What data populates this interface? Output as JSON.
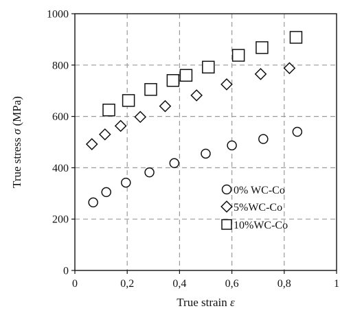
{
  "chart_data": {
    "type": "scatter",
    "title": "",
    "xlabel": "True strain",
    "xlabel_symbol": "ε",
    "ylabel": "True stress",
    "ylabel_symbol": "σ",
    "ylabel_unit": "(MPa)",
    "xlim": [
      0,
      1
    ],
    "ylim": [
      0,
      1000
    ],
    "x_ticks": [
      0,
      0.2,
      0.4,
      0.6,
      0.8,
      1
    ],
    "x_tick_labels": [
      "0",
      "0,2",
      "0,4",
      "0,6",
      "0,8",
      "1"
    ],
    "y_ticks": [
      0,
      200,
      400,
      600,
      800,
      1000
    ],
    "y_tick_labels": [
      "0",
      "200",
      "400",
      "600",
      "800",
      "1000"
    ],
    "grid": true,
    "legend_position": "bottom-right",
    "series": [
      {
        "name": "0% WC-Co",
        "marker": "circle",
        "x": [
          0.07,
          0.12,
          0.195,
          0.285,
          0.38,
          0.5,
          0.6,
          0.72,
          0.85
        ],
        "y": [
          265,
          305,
          342,
          382,
          418,
          455,
          487,
          512,
          540
        ]
      },
      {
        "name": "5%WC-Co",
        "marker": "diamond",
        "x": [
          0.065,
          0.115,
          0.175,
          0.25,
          0.345,
          0.465,
          0.58,
          0.71,
          0.82
        ],
        "y": [
          492,
          530,
          563,
          598,
          640,
          682,
          725,
          765,
          788
        ]
      },
      {
        "name": "10%WC-Co",
        "marker": "square",
        "x": [
          0.13,
          0.205,
          0.29,
          0.375,
          0.425,
          0.51,
          0.625,
          0.715,
          0.845
        ],
        "y": [
          625,
          662,
          705,
          740,
          760,
          792,
          838,
          868,
          908
        ]
      }
    ]
  }
}
